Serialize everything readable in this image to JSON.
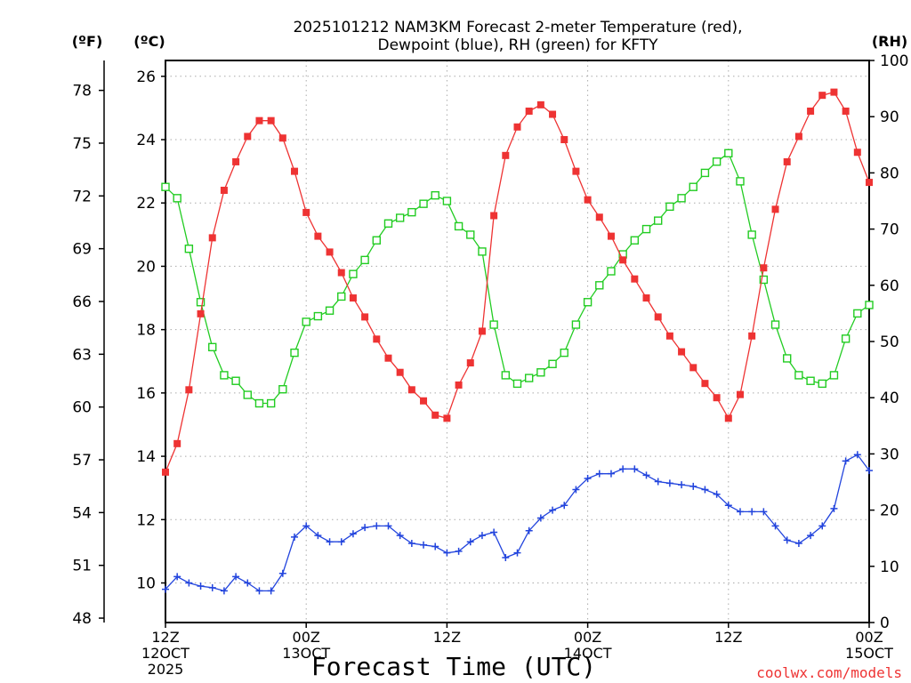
{
  "chart_data": {
    "type": "line",
    "title_line1": "2025101212 NAM3KM Forecast 2-meter Temperature (red),",
    "title_line2": "Dewpoint (blue), RH (green) for KFTY",
    "xlabel": "Forecast Time (UTC)",
    "credit": "coolwx.com/models",
    "axis_units": {
      "fahrenheit": "(ºF)",
      "celsius": "(ºC)",
      "rh": "(RH)"
    },
    "ylim_celsius": [
      8.75,
      26.5
    ],
    "ylim_rh": [
      0,
      100
    ],
    "celsius_ticks": [
      "10",
      "12",
      "14",
      "16",
      "18",
      "20",
      "22",
      "24",
      "26"
    ],
    "fahrenheit_ticks": [
      "48",
      "51",
      "54",
      "57",
      "60",
      "63",
      "66",
      "69",
      "72",
      "75",
      "78"
    ],
    "rh_ticks": [
      "0",
      "10",
      "20",
      "30",
      "40",
      "50",
      "60",
      "70",
      "80",
      "90",
      "100"
    ],
    "x_ticks": [
      {
        "hour": 0,
        "l1": "12Z",
        "l2": "12OCT",
        "l3": "2025"
      },
      {
        "hour": 12,
        "l1": "00Z",
        "l2": "13OCT",
        "l3": ""
      },
      {
        "hour": 24,
        "l1": "12Z",
        "l2": "",
        "l3": ""
      },
      {
        "hour": 36,
        "l1": "00Z",
        "l2": "14OCT",
        "l3": ""
      },
      {
        "hour": 48,
        "l1": "12Z",
        "l2": "",
        "l3": ""
      },
      {
        "hour": 60,
        "l1": "00Z",
        "l2": "15OCT",
        "l3": ""
      }
    ],
    "colors": {
      "temperature": "#ee3333",
      "dewpoint": "#2244dd",
      "rh": "#22cc22",
      "credit": "#ee3333"
    },
    "series": [
      {
        "name": "Temperature (°C)",
        "axis": "celsius",
        "marker": "filled-square",
        "x": [
          0,
          1,
          2,
          3,
          4,
          5,
          6,
          7,
          8,
          9,
          10,
          11,
          12,
          13,
          14,
          15,
          16,
          17,
          18,
          19,
          20,
          21,
          22,
          23,
          24,
          25,
          26,
          27,
          28,
          29,
          30,
          31,
          32,
          33,
          34,
          35,
          36,
          37,
          38,
          39,
          40,
          41,
          42,
          43,
          44,
          45,
          46,
          47,
          48,
          49,
          50,
          51,
          52,
          53,
          54,
          55,
          56,
          57,
          58,
          59,
          60
        ],
        "values": [
          13.5,
          14.4,
          16.1,
          18.5,
          20.9,
          22.4,
          23.3,
          24.1,
          24.6,
          24.6,
          24.05,
          23.0,
          21.7,
          20.95,
          20.45,
          19.8,
          19.0,
          18.4,
          17.7,
          17.1,
          16.65,
          16.1,
          15.75,
          15.3,
          15.2,
          16.25,
          16.95,
          17.95,
          21.6,
          23.5,
          24.4,
          24.9,
          25.1,
          24.8,
          24.0,
          23.0,
          22.1,
          21.55,
          20.95,
          20.2,
          19.6,
          19.0,
          18.4,
          17.8,
          17.3,
          16.8,
          16.3,
          15.85,
          15.2,
          15.95,
          17.8,
          19.95,
          21.8,
          23.3,
          24.1,
          24.9,
          25.4,
          25.5,
          24.9,
          23.6,
          22.65
        ]
      },
      {
        "name": "Dewpoint (°C)",
        "axis": "celsius",
        "marker": "plus",
        "x": [
          0,
          1,
          2,
          3,
          4,
          5,
          6,
          7,
          8,
          9,
          10,
          11,
          12,
          13,
          14,
          15,
          16,
          17,
          18,
          19,
          20,
          21,
          22,
          23,
          24,
          25,
          26,
          27,
          28,
          29,
          30,
          31,
          32,
          33,
          34,
          35,
          36,
          37,
          38,
          39,
          40,
          41,
          42,
          43,
          44,
          45,
          46,
          47,
          48,
          49,
          50,
          51,
          52,
          53,
          54,
          55,
          56,
          57,
          58,
          59,
          60
        ],
        "values": [
          9.8,
          10.2,
          10.0,
          9.9,
          9.85,
          9.75,
          10.2,
          10.0,
          9.75,
          9.75,
          10.3,
          11.45,
          11.8,
          11.5,
          11.3,
          11.3,
          11.55,
          11.75,
          11.8,
          11.8,
          11.5,
          11.25,
          11.2,
          11.15,
          10.95,
          11.0,
          11.3,
          11.5,
          11.6,
          10.8,
          10.95,
          11.65,
          12.05,
          12.3,
          12.45,
          12.95,
          13.3,
          13.45,
          13.45,
          13.6,
          13.6,
          13.4,
          13.2,
          13.15,
          13.1,
          13.05,
          12.95,
          12.8,
          12.45,
          12.25,
          12.25,
          12.25,
          11.8,
          11.35,
          11.25,
          11.5,
          11.8,
          12.35,
          13.85,
          14.05,
          13.55
        ]
      },
      {
        "name": "Relative Humidity (%)",
        "axis": "rh",
        "marker": "open-square",
        "x": [
          0,
          1,
          2,
          3,
          4,
          5,
          6,
          7,
          8,
          9,
          10,
          11,
          12,
          13,
          14,
          15,
          16,
          17,
          18,
          19,
          20,
          21,
          22,
          23,
          24,
          25,
          26,
          27,
          28,
          29,
          30,
          31,
          32,
          33,
          34,
          35,
          36,
          37,
          38,
          39,
          40,
          41,
          42,
          43,
          44,
          45,
          46,
          47,
          48,
          49,
          50,
          51,
          52,
          53,
          54,
          55,
          56,
          57,
          58,
          59,
          60
        ],
        "values": [
          77.5,
          75.5,
          66.5,
          57.0,
          49.0,
          44.0,
          43.0,
          40.5,
          39.0,
          39.0,
          41.5,
          48.0,
          53.5,
          54.5,
          55.5,
          58.0,
          62.0,
          64.5,
          68.0,
          71.0,
          72.0,
          73.0,
          74.5,
          76.0,
          75.0,
          70.5,
          69.0,
          66.0,
          53.0,
          44.0,
          42.5,
          43.5,
          44.5,
          46.0,
          48.0,
          53.0,
          57.0,
          60.0,
          62.5,
          65.5,
          68.0,
          70.0,
          71.5,
          74.0,
          75.5,
          77.5,
          80.0,
          82.0,
          83.5,
          78.5,
          69.0,
          61.0,
          53.0,
          47.0,
          44.0,
          43.0,
          42.5,
          44.0,
          50.5,
          55.0,
          56.5
        ]
      }
    ]
  }
}
